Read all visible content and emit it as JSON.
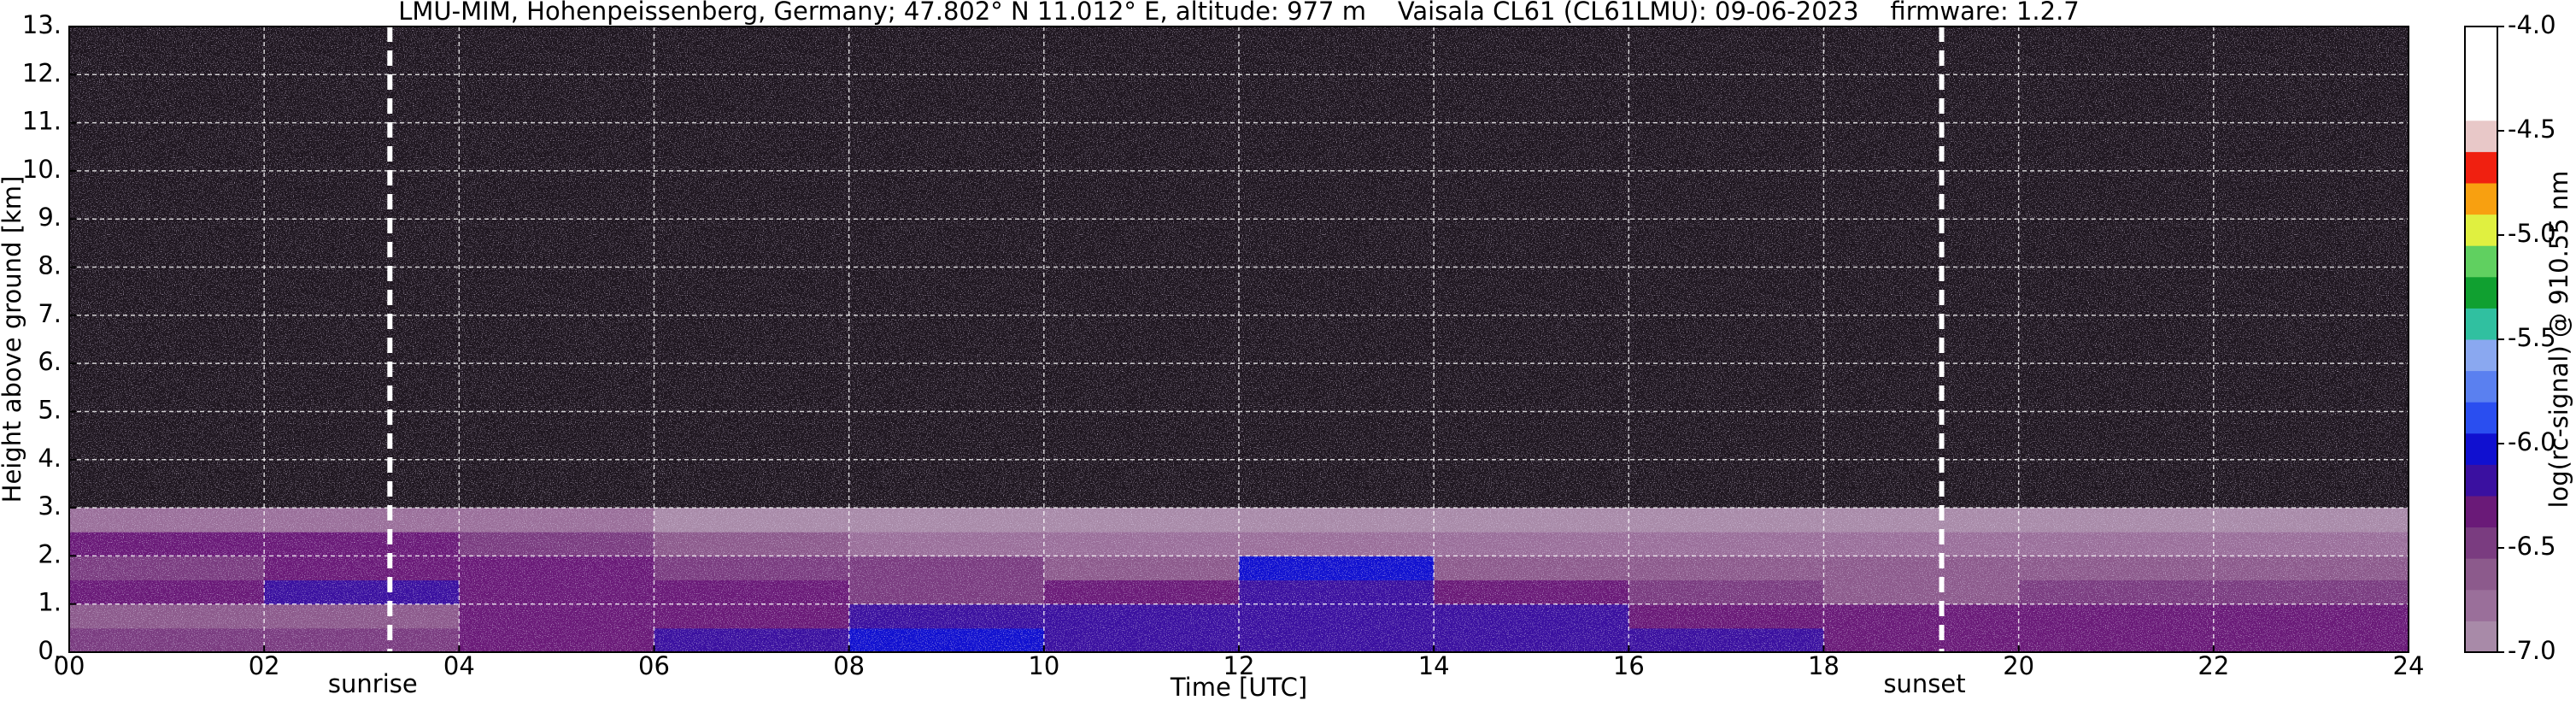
{
  "chart_data": {
    "type": "heatmap",
    "title": "LMU-MIM, Hohenpeissenberg, Germany; 47.802° N 11.012° E, altitude: 977 m    Vaisala CL61 (CL61LMU): 09-06-2023    firmware: 1.2.7",
    "x_label": "Time [UTC]",
    "y_label": "Height above ground [km]",
    "xlim": [
      0,
      24
    ],
    "ylim": [
      0,
      13
    ],
    "xticks": [
      {
        "value": 0,
        "label": "00"
      },
      {
        "value": 2,
        "label": "02"
      },
      {
        "value": 4,
        "label": "04"
      },
      {
        "value": 6,
        "label": "06"
      },
      {
        "value": 8,
        "label": "08"
      },
      10,
      12,
      14,
      16,
      18,
      20,
      22,
      24
    ],
    "yticks": [
      {
        "value": 0,
        "label": "0."
      },
      {
        "value": 1,
        "label": "1."
      },
      {
        "value": 2,
        "label": "2."
      },
      {
        "value": 3,
        "label": "3."
      },
      {
        "value": 4,
        "label": "4."
      },
      {
        "value": 5,
        "label": "5."
      },
      {
        "value": 6,
        "label": "6."
      },
      {
        "value": 7,
        "label": "7."
      },
      {
        "value": 8,
        "label": "8."
      },
      {
        "value": 9,
        "label": "9."
      },
      {
        "value": 10,
        "label": "10."
      },
      {
        "value": 11,
        "label": "11."
      },
      {
        "value": 12,
        "label": "12."
      },
      {
        "value": 13,
        "label": "13."
      }
    ],
    "grid": true,
    "x_edges": [
      0,
      2,
      4,
      6,
      8,
      10,
      12,
      14,
      16,
      18,
      20,
      22,
      24
    ],
    "y_edges": [
      0,
      0.5,
      1,
      1.5,
      2,
      2.5,
      3
    ],
    "z": [
      [
        -6.5,
        -6.4,
        -6.3,
        -6.2,
        -6.1,
        -6.2,
        -6.2,
        -6.2,
        -6.2,
        -6.3,
        -6.3,
        -6.3
      ],
      [
        -6.6,
        -6.6,
        -6.3,
        -6.3,
        -6.2,
        -6.2,
        -6.2,
        -6.2,
        -6.3,
        -6.3,
        -6.3,
        -6.3
      ],
      [
        -6.3,
        -6.2,
        -6.3,
        -6.3,
        -6.4,
        -6.3,
        -6.2,
        -6.3,
        -6.5,
        -6.6,
        -6.5,
        -6.5
      ],
      [
        -6.5,
        -6.3,
        -6.3,
        -6.4,
        -6.5,
        -6.6,
        -6.0,
        -6.6,
        -6.6,
        -6.6,
        -6.6,
        -6.6
      ],
      [
        -6.3,
        -6.3,
        -6.4,
        -6.6,
        -6.7,
        -6.8,
        -6.8,
        -6.8,
        -6.8,
        -6.7,
        -6.7,
        -6.7
      ],
      [
        -6.7,
        -6.7,
        -6.8,
        -6.9,
        -6.9,
        -6.9,
        -6.9,
        -6.9,
        -6.9,
        -6.9,
        -6.9,
        -6.9
      ]
    ],
    "annotations": [
      {
        "label": "sunrise",
        "x": 3.29
      },
      {
        "label": "sunset",
        "x": 19.21
      }
    ],
    "colorbar": {
      "label": "log(rc-signal) @ 910.55 nm",
      "lim": [
        -7,
        -4
      ],
      "ticks": [
        {
          "value": -4,
          "label": "-4.0"
        },
        -4.5,
        {
          "value": -5,
          "label": "-5.0"
        },
        -5.5,
        {
          "value": -6,
          "label": "-6.0"
        },
        -6.5,
        {
          "value": -7,
          "label": "-7.0"
        }
      ],
      "colors": [
        "#a88aa8",
        "#9a6f9a",
        "#8c5a8c",
        "#7a3c80",
        "#6a1a78",
        "#3a10a0",
        "#1010d0",
        "#2a4ef0",
        "#5a80f0",
        "#8aa8f0",
        "#30c0a0",
        "#10a030",
        "#60d060",
        "#e0f040",
        "#f8a010",
        "#f02010",
        "#e8c8c8",
        "#ffffff",
        "#ffffff",
        "#ffffff"
      ]
    }
  }
}
